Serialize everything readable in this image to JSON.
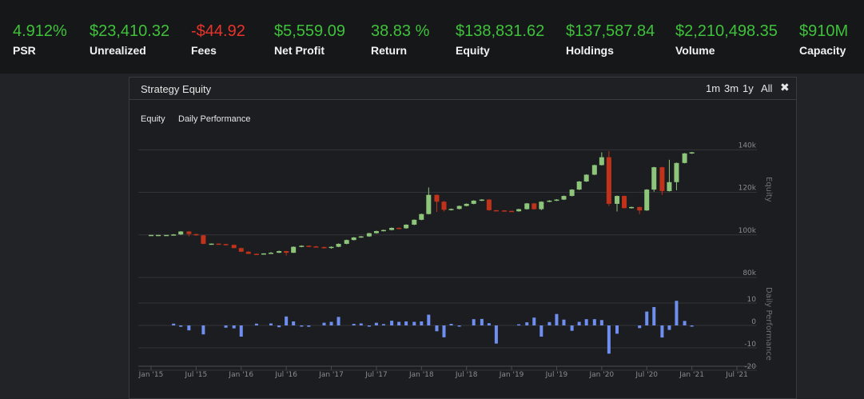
{
  "stats": [
    {
      "value": "4.912%",
      "label": "PSR",
      "tone": "pos"
    },
    {
      "value": "$23,410.32",
      "label": "Unrealized",
      "tone": "pos"
    },
    {
      "value": "-$44.92",
      "label": "Fees",
      "tone": "neg"
    },
    {
      "value": "$5,559.09",
      "label": "Net Profit",
      "tone": "pos"
    },
    {
      "value": "38.83 %",
      "label": "Return",
      "tone": "pos"
    },
    {
      "value": "$138,831.62",
      "label": "Equity",
      "tone": "pos"
    },
    {
      "value": "$137,587.84",
      "label": "Holdings",
      "tone": "pos"
    },
    {
      "value": "$2,210,498.35",
      "label": "Volume",
      "tone": "pos"
    },
    {
      "value": "$910M",
      "label": "Capacity",
      "tone": "pos"
    }
  ],
  "panel": {
    "title": "Strategy Equity",
    "ranges": [
      "1m",
      "3m",
      "1y",
      "All"
    ],
    "tabs": [
      "Equity",
      "Daily Performance"
    ]
  },
  "colors": {
    "up": "#8dc57a",
    "down": "#c0321a",
    "bar": "#6f8ff0",
    "grid": "#34353a"
  },
  "chart_data": [
    {
      "type": "candlestick",
      "ylabel": "Equity",
      "y_ticks": [
        "140k",
        "120k",
        "100k",
        "80k"
      ],
      "y_tick_values": [
        140000,
        120000,
        100000,
        80000
      ],
      "ylim": [
        80000,
        142000
      ],
      "x_ticks": [
        "Jan '15",
        "Jul '15",
        "Jan '16",
        "Jul '16",
        "Jan '17",
        "Jul '17",
        "Jan '18",
        "Jul '18",
        "Jan '19",
        "Jul '19",
        "Jan '20",
        "Jul '20",
        "Jan '21",
        "Jul '21"
      ],
      "xlim": [
        2015.0,
        2021.5
      ],
      "candles": [
        {
          "t": 2015.0,
          "o": 100000,
          "c": 100000,
          "h": 100000,
          "l": 100000
        },
        {
          "t": 2015.08,
          "o": 100000,
          "c": 100000,
          "h": 100000,
          "l": 100000
        },
        {
          "t": 2015.17,
          "o": 100000,
          "c": 100000,
          "h": 100000,
          "l": 100000
        },
        {
          "t": 2015.25,
          "o": 100000,
          "c": 100200,
          "h": 100400,
          "l": 99900
        },
        {
          "t": 2015.33,
          "o": 100200,
          "c": 101600,
          "h": 101800,
          "l": 100000
        },
        {
          "t": 2015.42,
          "o": 101600,
          "c": 100400,
          "h": 101800,
          "l": 99300
        },
        {
          "t": 2015.5,
          "o": 100400,
          "c": 99800,
          "h": 100500,
          "l": 99600
        },
        {
          "t": 2015.58,
          "o": 99800,
          "c": 95800,
          "h": 100100,
          "l": 95600
        },
        {
          "t": 2015.67,
          "o": 95800,
          "c": 95900,
          "h": 96000,
          "l": 95700
        },
        {
          "t": 2015.75,
          "o": 95900,
          "c": 95700,
          "h": 96000,
          "l": 95600
        },
        {
          "t": 2015.83,
          "o": 95700,
          "c": 95300,
          "h": 95800,
          "l": 95200
        },
        {
          "t": 2015.92,
          "o": 95300,
          "c": 93800,
          "h": 95500,
          "l": 93700
        },
        {
          "t": 2016.0,
          "o": 93800,
          "c": 92100,
          "h": 94000,
          "l": 91900
        },
        {
          "t": 2016.08,
          "o": 92100,
          "c": 91100,
          "h": 92300,
          "l": 91000
        },
        {
          "t": 2016.17,
          "o": 91100,
          "c": 91000,
          "h": 91300,
          "l": 90900
        },
        {
          "t": 2016.25,
          "o": 91000,
          "c": 91300,
          "h": 91400,
          "l": 90800
        },
        {
          "t": 2016.33,
          "o": 91300,
          "c": 91600,
          "h": 92000,
          "l": 91200
        },
        {
          "t": 2016.42,
          "o": 91600,
          "c": 92400,
          "h": 92600,
          "l": 91500
        },
        {
          "t": 2016.5,
          "o": 92400,
          "c": 91600,
          "h": 92500,
          "l": 90300
        },
        {
          "t": 2016.58,
          "o": 91600,
          "c": 94400,
          "h": 94600,
          "l": 91500
        },
        {
          "t": 2016.67,
          "o": 94400,
          "c": 94900,
          "h": 95100,
          "l": 94200
        },
        {
          "t": 2016.75,
          "o": 94900,
          "c": 94600,
          "h": 95000,
          "l": 94300
        },
        {
          "t": 2016.83,
          "o": 94600,
          "c": 94300,
          "h": 94800,
          "l": 94100
        },
        {
          "t": 2016.92,
          "o": 94300,
          "c": 93900,
          "h": 94500,
          "l": 93600
        },
        {
          "t": 2017.0,
          "o": 93900,
          "c": 94400,
          "h": 94600,
          "l": 93500
        },
        {
          "t": 2017.08,
          "o": 94400,
          "c": 95800,
          "h": 96000,
          "l": 94200
        },
        {
          "t": 2017.17,
          "o": 95800,
          "c": 97600,
          "h": 97800,
          "l": 95600
        },
        {
          "t": 2017.25,
          "o": 97600,
          "c": 98800,
          "h": 99000,
          "l": 97400
        },
        {
          "t": 2017.33,
          "o": 98800,
          "c": 99300,
          "h": 99500,
          "l": 98600
        },
        {
          "t": 2017.42,
          "o": 99300,
          "c": 100800,
          "h": 101000,
          "l": 99100
        },
        {
          "t": 2017.5,
          "o": 100800,
          "c": 101800,
          "h": 102000,
          "l": 100600
        },
        {
          "t": 2017.58,
          "o": 101800,
          "c": 102300,
          "h": 102500,
          "l": 101600
        },
        {
          "t": 2017.67,
          "o": 102300,
          "c": 103300,
          "h": 103500,
          "l": 102100
        },
        {
          "t": 2017.75,
          "o": 103300,
          "c": 103100,
          "h": 103500,
          "l": 102900
        },
        {
          "t": 2017.83,
          "o": 103100,
          "c": 104800,
          "h": 105000,
          "l": 102900
        },
        {
          "t": 2017.92,
          "o": 104800,
          "c": 107100,
          "h": 107300,
          "l": 104600
        },
        {
          "t": 2018.0,
          "o": 107100,
          "c": 109800,
          "h": 110000,
          "l": 106900
        },
        {
          "t": 2018.08,
          "o": 109800,
          "c": 118800,
          "h": 122300,
          "l": 109600
        },
        {
          "t": 2018.17,
          "o": 118800,
          "c": 115600,
          "h": 119000,
          "l": 110800
        },
        {
          "t": 2018.25,
          "o": 115600,
          "c": 111800,
          "h": 116000,
          "l": 111000
        },
        {
          "t": 2018.33,
          "o": 111800,
          "c": 112200,
          "h": 112400,
          "l": 111500
        },
        {
          "t": 2018.42,
          "o": 112200,
          "c": 113600,
          "h": 113800,
          "l": 112000
        },
        {
          "t": 2018.5,
          "o": 113600,
          "c": 114600,
          "h": 114800,
          "l": 113400
        },
        {
          "t": 2018.58,
          "o": 114600,
          "c": 116100,
          "h": 116300,
          "l": 114400
        },
        {
          "t": 2018.67,
          "o": 116100,
          "c": 116600,
          "h": 116800,
          "l": 115900
        },
        {
          "t": 2018.75,
          "o": 116600,
          "c": 111600,
          "h": 116800,
          "l": 111400
        },
        {
          "t": 2018.83,
          "o": 111600,
          "c": 111500,
          "h": 111700,
          "l": 111400
        },
        {
          "t": 2018.92,
          "o": 111500,
          "c": 111300,
          "h": 111600,
          "l": 111100
        },
        {
          "t": 2019.0,
          "o": 111300,
          "c": 111100,
          "h": 111400,
          "l": 111000
        },
        {
          "t": 2019.08,
          "o": 111100,
          "c": 112100,
          "h": 112300,
          "l": 110900
        },
        {
          "t": 2019.17,
          "o": 112100,
          "c": 114800,
          "h": 115000,
          "l": 111900
        },
        {
          "t": 2019.25,
          "o": 114800,
          "c": 112100,
          "h": 115000,
          "l": 111900
        },
        {
          "t": 2019.33,
          "o": 112100,
          "c": 115600,
          "h": 115800,
          "l": 111600
        },
        {
          "t": 2019.42,
          "o": 115600,
          "c": 116100,
          "h": 116300,
          "l": 115400
        },
        {
          "t": 2019.5,
          "o": 116100,
          "c": 116600,
          "h": 116800,
          "l": 115900
        },
        {
          "t": 2019.58,
          "o": 116600,
          "c": 118300,
          "h": 118500,
          "l": 116400
        },
        {
          "t": 2019.67,
          "o": 118300,
          "c": 121300,
          "h": 121500,
          "l": 118100
        },
        {
          "t": 2019.75,
          "o": 121300,
          "c": 125100,
          "h": 125300,
          "l": 121100
        },
        {
          "t": 2019.83,
          "o": 125100,
          "c": 128300,
          "h": 128500,
          "l": 124900
        },
        {
          "t": 2019.92,
          "o": 128300,
          "c": 132800,
          "h": 133000,
          "l": 128100
        },
        {
          "t": 2020.0,
          "o": 132800,
          "c": 136500,
          "h": 138800,
          "l": 132600
        },
        {
          "t": 2020.08,
          "o": 136500,
          "c": 114600,
          "h": 139400,
          "l": 113600
        },
        {
          "t": 2020.17,
          "o": 114600,
          "c": 118300,
          "h": 118500,
          "l": 111000
        },
        {
          "t": 2020.25,
          "o": 118300,
          "c": 112600,
          "h": 118500,
          "l": 112400
        },
        {
          "t": 2020.33,
          "o": 112600,
          "c": 113100,
          "h": 113300,
          "l": 112400
        },
        {
          "t": 2020.42,
          "o": 113100,
          "c": 111500,
          "h": 113300,
          "l": 109800
        },
        {
          "t": 2020.5,
          "o": 111500,
          "c": 121300,
          "h": 121500,
          "l": 111300
        },
        {
          "t": 2020.58,
          "o": 121300,
          "c": 131800,
          "h": 132000,
          "l": 120300
        },
        {
          "t": 2020.67,
          "o": 131800,
          "c": 120600,
          "h": 132000,
          "l": 118800
        },
        {
          "t": 2020.75,
          "o": 120600,
          "c": 124800,
          "h": 135300,
          "l": 120400
        },
        {
          "t": 2020.83,
          "o": 124800,
          "c": 133800,
          "h": 134000,
          "l": 121000
        },
        {
          "t": 2020.92,
          "o": 133800,
          "c": 138300,
          "h": 138500,
          "l": 133600
        },
        {
          "t": 2021.0,
          "o": 138300,
          "c": 138800,
          "h": 139000,
          "l": 138100
        }
      ]
    },
    {
      "type": "bar",
      "ylabel": "Daily Performance",
      "y_ticks": [
        "10",
        "0",
        "-10",
        "-20"
      ],
      "y_tick_values": [
        10,
        0,
        -10,
        -20
      ],
      "ylim": [
        -20,
        10
      ],
      "xlim": [
        2015.0,
        2021.5
      ],
      "bars": [
        {
          "t": 2015.25,
          "v": 0.8
        },
        {
          "t": 2015.33,
          "v": -0.6
        },
        {
          "t": 2015.42,
          "v": -2.2
        },
        {
          "t": 2015.58,
          "v": -4.0
        },
        {
          "t": 2015.83,
          "v": -1.0
        },
        {
          "t": 2015.92,
          "v": -1.3
        },
        {
          "t": 2016.0,
          "v": -5.0
        },
        {
          "t": 2016.17,
          "v": 0.8
        },
        {
          "t": 2016.33,
          "v": 0.9
        },
        {
          "t": 2016.42,
          "v": -0.8
        },
        {
          "t": 2016.5,
          "v": 4.0
        },
        {
          "t": 2016.58,
          "v": 1.8
        },
        {
          "t": 2016.67,
          "v": -0.5
        },
        {
          "t": 2016.75,
          "v": -0.6
        },
        {
          "t": 2016.92,
          "v": 1.2
        },
        {
          "t": 2017.0,
          "v": 1.6
        },
        {
          "t": 2017.08,
          "v": 3.8
        },
        {
          "t": 2017.25,
          "v": 0.7
        },
        {
          "t": 2017.33,
          "v": 0.9
        },
        {
          "t": 2017.42,
          "v": -0.5
        },
        {
          "t": 2017.5,
          "v": 1.2
        },
        {
          "t": 2017.58,
          "v": 0.6
        },
        {
          "t": 2017.67,
          "v": 2.1
        },
        {
          "t": 2017.75,
          "v": 1.6
        },
        {
          "t": 2017.83,
          "v": 1.8
        },
        {
          "t": 2017.92,
          "v": 1.6
        },
        {
          "t": 2018.0,
          "v": 1.8
        },
        {
          "t": 2018.08,
          "v": 4.8
        },
        {
          "t": 2018.17,
          "v": -2.6
        },
        {
          "t": 2018.25,
          "v": -5.3
        },
        {
          "t": 2018.33,
          "v": 0.7
        },
        {
          "t": 2018.42,
          "v": -0.4
        },
        {
          "t": 2018.58,
          "v": 2.8
        },
        {
          "t": 2018.67,
          "v": 2.9
        },
        {
          "t": 2018.75,
          "v": 1.0
        },
        {
          "t": 2018.83,
          "v": -8.1
        },
        {
          "t": 2019.08,
          "v": 0.5
        },
        {
          "t": 2019.17,
          "v": 1.4
        },
        {
          "t": 2019.25,
          "v": 3.5
        },
        {
          "t": 2019.33,
          "v": -5.0
        },
        {
          "t": 2019.42,
          "v": 1.5
        },
        {
          "t": 2019.5,
          "v": 5.1
        },
        {
          "t": 2019.58,
          "v": 2.6
        },
        {
          "t": 2019.67,
          "v": -2.4
        },
        {
          "t": 2019.75,
          "v": 1.6
        },
        {
          "t": 2019.83,
          "v": 2.8
        },
        {
          "t": 2019.92,
          "v": 2.8
        },
        {
          "t": 2020.0,
          "v": 2.4
        },
        {
          "t": 2020.08,
          "v": -12.6
        },
        {
          "t": 2020.17,
          "v": -3.7
        },
        {
          "t": 2020.42,
          "v": -1.2
        },
        {
          "t": 2020.5,
          "v": 6.2
        },
        {
          "t": 2020.58,
          "v": 8.2
        },
        {
          "t": 2020.67,
          "v": -5.4
        },
        {
          "t": 2020.75,
          "v": -2.0
        },
        {
          "t": 2020.83,
          "v": 11.0
        },
        {
          "t": 2020.92,
          "v": 2.0
        },
        {
          "t": 2021.0,
          "v": -0.4
        }
      ]
    }
  ]
}
